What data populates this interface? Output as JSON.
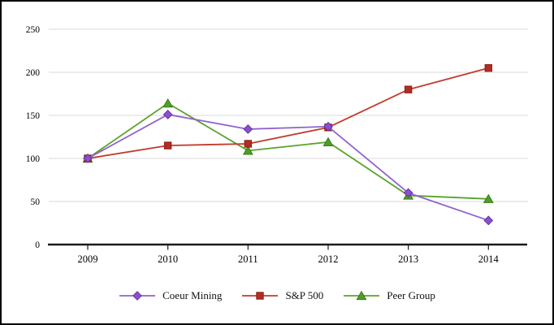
{
  "chart_data": {
    "type": "line",
    "title": "",
    "xlabel": "",
    "ylabel": "",
    "categories": [
      "2009",
      "2010",
      "2011",
      "2012",
      "2013",
      "2014"
    ],
    "series": [
      {
        "name": "Coeur Mining",
        "values": [
          100,
          151,
          134,
          137,
          60,
          28
        ],
        "marker": "diamond",
        "line_color": "#9063cf",
        "marker_fill": "#8a50cf",
        "marker_border": "#63399e"
      },
      {
        "name": "S&P 500",
        "values": [
          100,
          115,
          117,
          136,
          180,
          205
        ],
        "marker": "square",
        "line_color": "#c23b2b",
        "marker_fill": "#b32d22",
        "marker_border": "#8a211a"
      },
      {
        "name": "Peer Group",
        "values": [
          100,
          164,
          109,
          119,
          57,
          53
        ],
        "marker": "triangle",
        "line_color": "#59a42a",
        "marker_fill": "#4d9e27",
        "marker_border": "#3a7a1b"
      }
    ],
    "y_ticks": [
      0,
      50,
      100,
      150,
      200,
      250
    ],
    "ylim": [
      0,
      250
    ],
    "grid": true,
    "gridline_color": "#dadada",
    "axis_color": "#1b1b1b",
    "legend_position": "bottom"
  }
}
